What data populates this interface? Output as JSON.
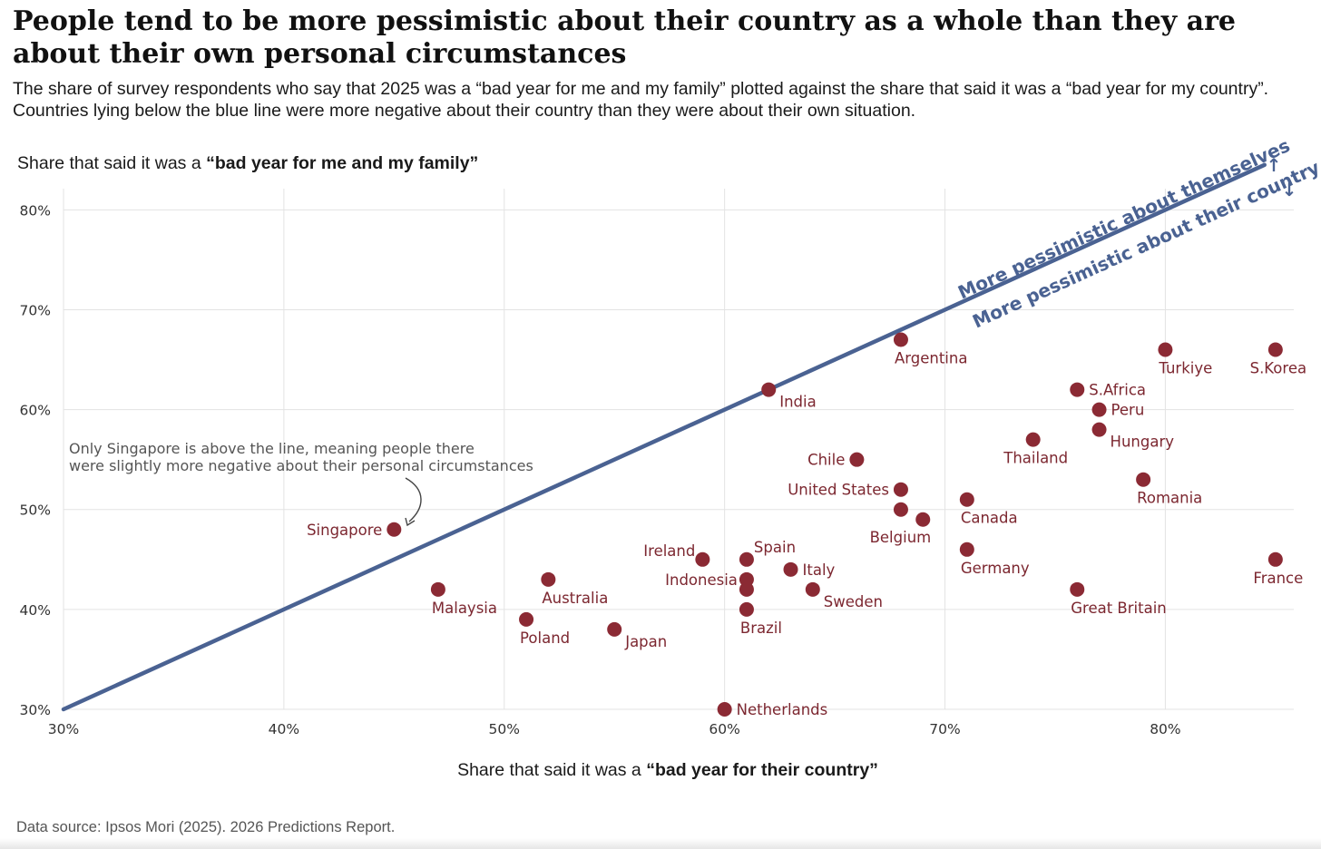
{
  "title": "People tend to be more pessimistic about their country as a whole than they are about their own personal circumstances",
  "subtitle": "The share of survey respondents who say that 2025 was a “bad year for me and my family” plotted against the share that said it was a “bad year for my country”. Countries lying below the blue line were more negative about their country than they were about their own situation.",
  "source": "Data source: Ipsos Mori (2025). 2026 Predictions Report.",
  "colors": {
    "point": "#8b2a34",
    "label": "#7c2730",
    "line": "#4a6292",
    "grid": "#e3e3e3"
  },
  "chart_data": {
    "type": "scatter",
    "ylabel_prefix": "Share that said it was a ",
    "ylabel_bold": "“bad year for me and my family”",
    "xlabel_prefix": "Share that said it was a ",
    "xlabel_bold": "“bad year for their country”",
    "xlim": [
      30,
      85.5
    ],
    "ylim": [
      30,
      83.3
    ],
    "x_ticks": [
      30,
      40,
      50,
      60,
      70,
      80
    ],
    "x_tick_labels": [
      "30%",
      "40%",
      "50%",
      "60%",
      "70%",
      "80%"
    ],
    "y_ticks": [
      30,
      40,
      50,
      60,
      70,
      80
    ],
    "y_tick_labels": [
      "30%",
      "40%",
      "50%",
      "60%",
      "70%",
      "80%"
    ],
    "grid": true,
    "reference_line": {
      "type": "y=x",
      "from": [
        30,
        30
      ],
      "to": [
        84.5,
        84.5
      ],
      "label_above": "More pessimistic about themselves",
      "label_below": "More pessimistic about their country",
      "arrow_up": "↑",
      "arrow_down": "↓"
    },
    "annotation": {
      "lines": [
        "Only Singapore is above the line, meaning people there",
        "were slightly more negative about their personal circumstances"
      ],
      "points_to": "Singapore"
    },
    "points": [
      {
        "name": "Singapore",
        "x": 45,
        "y": 48,
        "pos": "left"
      },
      {
        "name": "Malaysia",
        "x": 47,
        "y": 42,
        "pos": "below-right"
      },
      {
        "name": "Australia",
        "x": 52,
        "y": 43,
        "pos": "below-right"
      },
      {
        "name": "Poland",
        "x": 51,
        "y": 39,
        "pos": "below-right"
      },
      {
        "name": "Japan",
        "x": 55,
        "y": 38,
        "pos": "right-low"
      },
      {
        "name": "Ireland",
        "x": 59,
        "y": 45,
        "pos": "left-up"
      },
      {
        "name": "Spain",
        "x": 61,
        "y": 45,
        "pos": "above-right"
      },
      {
        "name": "Indonesia",
        "x": 61,
        "y": 43,
        "pos": "left-down"
      },
      {
        "name": "",
        "x": 61,
        "y": 42,
        "pos": "none"
      },
      {
        "name": "Brazil",
        "x": 61,
        "y": 40,
        "pos": "below-right"
      },
      {
        "name": "Netherlands",
        "x": 60,
        "y": 30,
        "pos": "right"
      },
      {
        "name": "Italy",
        "x": 63,
        "y": 44,
        "pos": "right"
      },
      {
        "name": "Sweden",
        "x": 64,
        "y": 42,
        "pos": "right-low"
      },
      {
        "name": "India",
        "x": 62,
        "y": 62,
        "pos": "right-low"
      },
      {
        "name": "Chile",
        "x": 66,
        "y": 55,
        "pos": "left"
      },
      {
        "name": "United States",
        "x": 68,
        "y": 52,
        "pos": "left"
      },
      {
        "name": "",
        "x": 68,
        "y": 50,
        "pos": "none"
      },
      {
        "name": "Belgium",
        "x": 69,
        "y": 49,
        "pos": "below-left"
      },
      {
        "name": "Argentina",
        "x": 68,
        "y": 67,
        "pos": "below-right"
      },
      {
        "name": "Canada",
        "x": 71,
        "y": 51,
        "pos": "below-right"
      },
      {
        "name": "Germany",
        "x": 71,
        "y": 46,
        "pos": "below-right"
      },
      {
        "name": "Thailand",
        "x": 74,
        "y": 57,
        "pos": "below-center"
      },
      {
        "name": "S.Africa",
        "x": 76,
        "y": 62,
        "pos": "right"
      },
      {
        "name": "Peru",
        "x": 77,
        "y": 60,
        "pos": "right"
      },
      {
        "name": "Hungary",
        "x": 77,
        "y": 58,
        "pos": "right-low"
      },
      {
        "name": "Romania",
        "x": 79,
        "y": 53,
        "pos": "below-right"
      },
      {
        "name": "Great Britain",
        "x": 76,
        "y": 42,
        "pos": "below-right"
      },
      {
        "name": "Turkiye",
        "x": 80,
        "y": 66,
        "pos": "below-right"
      },
      {
        "name": "S.Korea",
        "x": 85,
        "y": 66,
        "pos": "below-center"
      },
      {
        "name": "France",
        "x": 85,
        "y": 45,
        "pos": "below-center"
      }
    ]
  }
}
